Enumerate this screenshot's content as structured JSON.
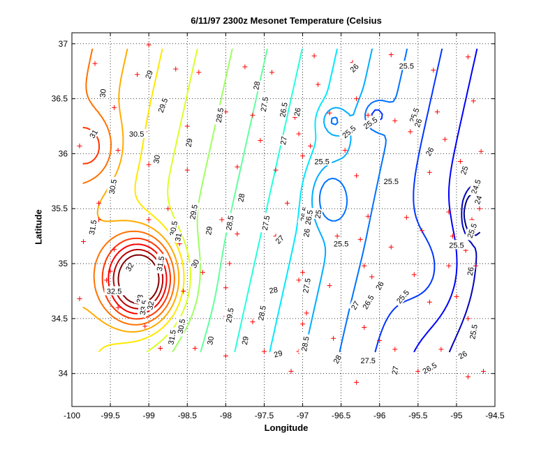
{
  "chart_data": {
    "type": "contour",
    "title": "6/11/97 2300z Mesonet Temperature (Celsius",
    "xlabel": "Longitude",
    "ylabel": "Latitude",
    "xlim": [
      -100,
      -94.5
    ],
    "ylim": [
      33.7,
      37.1
    ],
    "xticks": [
      -100,
      -99.5,
      -99,
      -98.5,
      -98,
      -97.5,
      -97,
      -96.5,
      -96,
      -95.5,
      -95,
      -94.5
    ],
    "yticks": [
      34,
      34.5,
      35,
      35.5,
      36,
      36.5,
      37
    ],
    "grid": true,
    "units": "Celsius",
    "colormap": "jet",
    "contour_levels": [
      24,
      24.5,
      25,
      25.5,
      26,
      26.5,
      27,
      27.5,
      28,
      28.5,
      29,
      29.5,
      30,
      30.5,
      31,
      31.5,
      32,
      32.5
    ],
    "station_marker_color": "#ff0000",
    "stations": [
      [
        -99.7,
        36.82
      ],
      [
        -99.0,
        36.99
      ],
      [
        -98.65,
        36.77
      ],
      [
        -98.35,
        36.74
      ],
      [
        -97.75,
        36.79
      ],
      [
        -97.4,
        36.74
      ],
      [
        -96.85,
        36.89
      ],
      [
        -96.35,
        36.83
      ],
      [
        -95.85,
        36.9
      ],
      [
        -95.3,
        36.76
      ],
      [
        -94.85,
        36.88
      ],
      [
        -99.15,
        36.72
      ],
      [
        -96.8,
        36.63
      ],
      [
        -96.3,
        36.5
      ],
      [
        -94.78,
        36.48
      ],
      [
        -99.45,
        36.42
      ],
      [
        -98.0,
        36.38
      ],
      [
        -97.65,
        36.35
      ],
      [
        -97.1,
        36.33
      ],
      [
        -96.65,
        36.37
      ],
      [
        -96.15,
        36.35
      ],
      [
        -95.25,
        36.38
      ],
      [
        -98.5,
        36.25
      ],
      [
        -99.05,
        36.2
      ],
      [
        -97.05,
        36.18
      ],
      [
        -95.8,
        36.3
      ],
      [
        -95.6,
        36.2
      ],
      [
        -99.9,
        36.07
      ],
      [
        -99.4,
        36.03
      ],
      [
        -97.55,
        36.12
      ],
      [
        -96.9,
        36.07
      ],
      [
        -96.45,
        36.03
      ],
      [
        -95.15,
        36.13
      ],
      [
        -94.68,
        36.02
      ],
      [
        -97.0,
        35.98
      ],
      [
        -99.0,
        35.9
      ],
      [
        -98.5,
        35.85
      ],
      [
        -97.85,
        35.88
      ],
      [
        -97.35,
        35.85
      ],
      [
        -96.3,
        35.8
      ],
      [
        -95.35,
        35.83
      ],
      [
        -94.95,
        35.93
      ],
      [
        -99.65,
        35.55
      ],
      [
        -98.75,
        35.5
      ],
      [
        -98.45,
        35.48
      ],
      [
        -97.2,
        35.55
      ],
      [
        -96.15,
        35.43
      ],
      [
        -95.65,
        35.42
      ],
      [
        -95.1,
        35.47
      ],
      [
        -94.7,
        35.5
      ],
      [
        -99.65,
        35.4
      ],
      [
        -99.0,
        35.4
      ],
      [
        -98.05,
        35.4
      ],
      [
        -97.85,
        35.27
      ],
      [
        -97.35,
        35.25
      ],
      [
        -96.55,
        35.25
      ],
      [
        -95.45,
        35.3
      ],
      [
        -95.05,
        35.25
      ],
      [
        -94.8,
        35.4
      ],
      [
        -99.85,
        35.2
      ],
      [
        -99.45,
        35.13
      ],
      [
        -98.85,
        35.05
      ],
      [
        -98.6,
        35.18
      ],
      [
        -96.25,
        35.22
      ],
      [
        -95.85,
        35.15
      ],
      [
        -94.88,
        35.12
      ],
      [
        -98.3,
        34.92
      ],
      [
        -97.95,
        35.0
      ],
      [
        -96.2,
        34.98
      ],
      [
        -95.1,
        34.98
      ],
      [
        -94.75,
        34.98
      ],
      [
        -95.55,
        34.9
      ],
      [
        -97.0,
        34.92
      ],
      [
        -99.5,
        34.93
      ],
      [
        -99.9,
        34.68
      ],
      [
        -99.55,
        34.85
      ],
      [
        -99.15,
        34.7
      ],
      [
        -98.55,
        34.75
      ],
      [
        -98.0,
        34.78
      ],
      [
        -97.35,
        34.75
      ],
      [
        -97.05,
        34.85
      ],
      [
        -96.65,
        34.8
      ],
      [
        -96.1,
        34.88
      ],
      [
        -95.35,
        34.65
      ],
      [
        -95.0,
        34.7
      ],
      [
        -99.4,
        34.6
      ],
      [
        -97.95,
        34.6
      ],
      [
        -96.3,
        34.62
      ],
      [
        -96.95,
        34.55
      ],
      [
        -99.05,
        34.43
      ],
      [
        -98.0,
        34.52
      ],
      [
        -97.65,
        34.47
      ],
      [
        -97.0,
        34.45
      ],
      [
        -96.2,
        34.42
      ],
      [
        -94.85,
        34.5
      ],
      [
        -98.85,
        34.23
      ],
      [
        -98.4,
        34.23
      ],
      [
        -98.0,
        34.16
      ],
      [
        -97.5,
        34.2
      ],
      [
        -97.05,
        34.2
      ],
      [
        -96.6,
        34.32
      ],
      [
        -96.0,
        34.3
      ],
      [
        -95.8,
        34.22
      ],
      [
        -95.2,
        34.22
      ],
      [
        -94.9,
        34.18
      ],
      [
        -97.15,
        34.02
      ],
      [
        -96.3,
        33.92
      ],
      [
        -95.5,
        34.02
      ],
      [
        -94.85,
        33.97
      ],
      [
        -94.65,
        34.02
      ]
    ],
    "labels": [
      {
        "text": "29",
        "x": -99.0,
        "y": 36.72,
        "rot": -70
      },
      {
        "text": "30",
        "x": -99.6,
        "y": 36.55,
        "rot": -85
      },
      {
        "text": "29.5",
        "x": -98.82,
        "y": 36.44,
        "rot": -70
      },
      {
        "text": "31",
        "x": -99.72,
        "y": 36.18,
        "rot": -60
      },
      {
        "text": "30.5",
        "x": -99.16,
        "y": 36.18,
        "rot": 0
      },
      {
        "text": "30.5",
        "x": -99.47,
        "y": 35.7,
        "rot": -80
      },
      {
        "text": "29",
        "x": -98.48,
        "y": 36.1,
        "rot": -80
      },
      {
        "text": "30",
        "x": -98.9,
        "y": 35.95,
        "rot": -80
      },
      {
        "text": "29.5",
        "x": -98.42,
        "y": 35.47,
        "rot": -80
      },
      {
        "text": "31.5",
        "x": -99.73,
        "y": 35.33,
        "rot": -80
      },
      {
        "text": "30.5",
        "x": -98.68,
        "y": 35.32,
        "rot": -80
      },
      {
        "text": "31",
        "x": -98.62,
        "y": 35.24,
        "rot": -80
      },
      {
        "text": "29",
        "x": -98.22,
        "y": 35.3,
        "rot": -80
      },
      {
        "text": "28.5",
        "x": -97.95,
        "y": 35.37,
        "rot": -80
      },
      {
        "text": "32",
        "x": -99.25,
        "y": 34.97,
        "rot": -60
      },
      {
        "text": "31.5",
        "x": -98.85,
        "y": 35.0,
        "rot": -80
      },
      {
        "text": "30",
        "x": -98.4,
        "y": 35.0,
        "rot": -60
      },
      {
        "text": "32.5",
        "x": -99.45,
        "y": 34.75,
        "rot": 0
      },
      {
        "text": "33",
        "x": -99.12,
        "y": 34.68,
        "rot": -80
      },
      {
        "text": "33.5",
        "x": -99.07,
        "y": 34.6,
        "rot": -80
      },
      {
        "text": "32",
        "x": -98.98,
        "y": 34.62,
        "rot": -80
      },
      {
        "text": "30.5",
        "x": -98.58,
        "y": 34.43,
        "rot": -80
      },
      {
        "text": "31.5",
        "x": -98.7,
        "y": 34.33,
        "rot": -80
      },
      {
        "text": "30",
        "x": -98.2,
        "y": 34.3,
        "rot": -80
      },
      {
        "text": "29.5",
        "x": -97.95,
        "y": 34.53,
        "rot": -80
      },
      {
        "text": "28.5",
        "x": -97.53,
        "y": 34.55,
        "rot": -80
      },
      {
        "text": "29",
        "x": -97.75,
        "y": 34.3,
        "rot": -80
      },
      {
        "text": "29",
        "x": -97.32,
        "y": 34.18,
        "rot": -15
      },
      {
        "text": "28",
        "x": -97.8,
        "y": 35.6,
        "rot": -80
      },
      {
        "text": "28.5",
        "x": -98.08,
        "y": 36.35,
        "rot": -80
      },
      {
        "text": "28",
        "x": -97.6,
        "y": 36.62,
        "rot": -80
      },
      {
        "text": "27.5",
        "x": -97.5,
        "y": 36.45,
        "rot": -80
      },
      {
        "text": "27",
        "x": -97.25,
        "y": 36.12,
        "rot": -80
      },
      {
        "text": "26.5",
        "x": -97.25,
        "y": 36.4,
        "rot": -80
      },
      {
        "text": "26",
        "x": -97.07,
        "y": 36.38,
        "rot": -80
      },
      {
        "text": "27.5",
        "x": -97.48,
        "y": 35.37,
        "rot": -80
      },
      {
        "text": "27",
        "x": -97.3,
        "y": 35.22,
        "rot": -45
      },
      {
        "text": "28",
        "x": -97.38,
        "y": 34.76,
        "rot": -10
      },
      {
        "text": "26.5",
        "x": -96.98,
        "y": 35.45,
        "rot": -80
      },
      {
        "text": "26.5",
        "x": -96.92,
        "y": 35.42,
        "rot": -80
      },
      {
        "text": "27.5",
        "x": -96.95,
        "y": 34.8,
        "rot": -80
      },
      {
        "text": "28.5",
        "x": -96.97,
        "y": 34.27,
        "rot": -80
      },
      {
        "text": "28",
        "x": -96.55,
        "y": 34.13,
        "rot": -60
      },
      {
        "text": "26",
        "x": -96.95,
        "y": 35.28,
        "rot": -80
      },
      {
        "text": "25.5",
        "x": -96.4,
        "y": 36.2,
        "rot": -40
      },
      {
        "text": "25.5",
        "x": -96.75,
        "y": 35.93,
        "rot": 0
      },
      {
        "text": "25",
        "x": -96.8,
        "y": 35.45,
        "rot": -80
      },
      {
        "text": "25.5",
        "x": -96.5,
        "y": 35.18,
        "rot": 0
      },
      {
        "text": "26",
        "x": -96.33,
        "y": 36.78,
        "rot": -45
      },
      {
        "text": "25.5",
        "x": -96.12,
        "y": 36.28,
        "rot": -35
      },
      {
        "text": "25.5",
        "x": -95.65,
        "y": 36.8,
        "rot": 0
      },
      {
        "text": "25.5",
        "x": -95.55,
        "y": 36.35,
        "rot": -70
      },
      {
        "text": "26",
        "x": -95.5,
        "y": 36.28,
        "rot": -70
      },
      {
        "text": "26",
        "x": -95.35,
        "y": 36.02,
        "rot": -60
      },
      {
        "text": "25.5",
        "x": -95.85,
        "y": 35.75,
        "rot": 0
      },
      {
        "text": "25",
        "x": -94.9,
        "y": 35.85,
        "rot": -70
      },
      {
        "text": "24.5",
        "x": -94.75,
        "y": 35.7,
        "rot": -70
      },
      {
        "text": "24",
        "x": -94.72,
        "y": 35.58,
        "rot": -70
      },
      {
        "text": "25.5",
        "x": -94.8,
        "y": 35.3,
        "rot": -70
      },
      {
        "text": "25.5",
        "x": -95.0,
        "y": 35.17,
        "rot": 0
      },
      {
        "text": "26",
        "x": -94.82,
        "y": 34.93,
        "rot": -80
      },
      {
        "text": "26",
        "x": -96.0,
        "y": 34.8,
        "rot": -60
      },
      {
        "text": "26.5",
        "x": -96.15,
        "y": 34.65,
        "rot": -60
      },
      {
        "text": "27",
        "x": -96.32,
        "y": 34.62,
        "rot": -60
      },
      {
        "text": "25.5",
        "x": -95.7,
        "y": 34.7,
        "rot": -50
      },
      {
        "text": "25.5",
        "x": -94.78,
        "y": 34.38,
        "rot": -80
      },
      {
        "text": "26",
        "x": -94.92,
        "y": 34.17,
        "rot": -30
      },
      {
        "text": "26.5",
        "x": -95.35,
        "y": 34.05,
        "rot": -30
      },
      {
        "text": "27",
        "x": -95.8,
        "y": 34.03,
        "rot": -80
      },
      {
        "text": "27.5",
        "x": -96.15,
        "y": 34.12,
        "rot": 0
      }
    ]
  }
}
